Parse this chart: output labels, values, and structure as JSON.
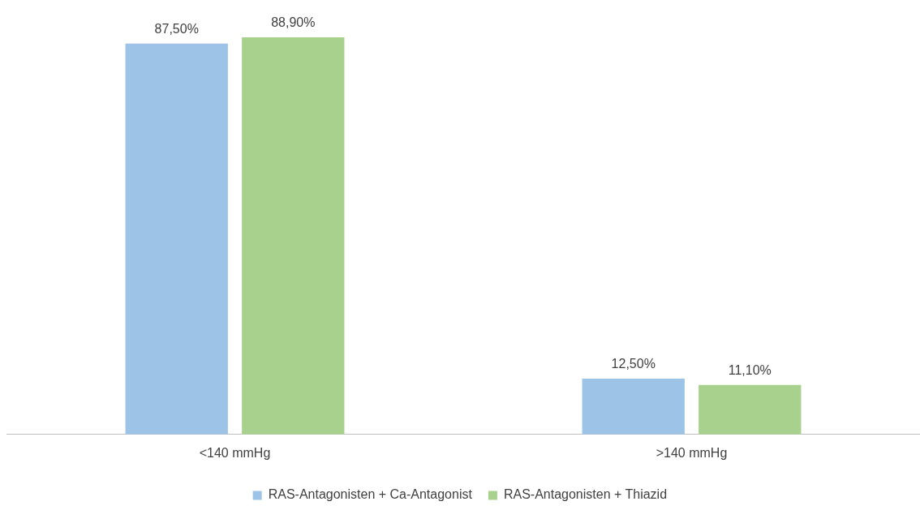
{
  "chart_data": {
    "type": "bar",
    "relative": false,
    "categories": [
      "<140 mmHg",
      ">140 mmHg"
    ],
    "series": [
      {
        "name": "RAS-Antagonisten + Ca-Antagonist",
        "color": "#9dc3e6",
        "values": [
          87.5,
          12.5
        ],
        "value_labels": [
          "87,50%",
          "12,50%"
        ]
      },
      {
        "name": "RAS-Antagonisten + Thiazid",
        "color": "#a9d18e",
        "values": [
          88.9,
          11.1
        ],
        "value_labels": [
          "88,90%",
          "11,10%"
        ]
      }
    ],
    "legend": "bottom",
    "grid": false
  }
}
